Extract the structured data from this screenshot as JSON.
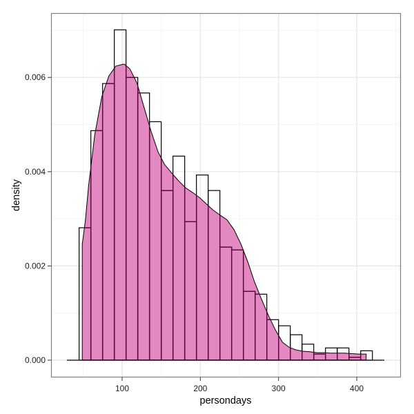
{
  "chart_data": {
    "type": "bar",
    "subtype": "histogram_with_density",
    "title": "",
    "xlabel": "persondays",
    "ylabel": "density",
    "xlim": [
      25,
      450
    ],
    "ylim": [
      -0.00035,
      0.0073
    ],
    "x_ticks": [
      100,
      200,
      300,
      400
    ],
    "x_tick_labels": [
      "100",
      "200",
      "300",
      "400"
    ],
    "y_ticks": [
      0.0,
      0.002,
      0.004,
      0.006
    ],
    "y_tick_labels": [
      "0.000",
      "0.002",
      "0.004",
      "0.006"
    ],
    "grid": true,
    "legend": null,
    "bin_width": 15,
    "bins": [
      {
        "x0": 45,
        "x1": 60,
        "density": 0.00281
      },
      {
        "x0": 60,
        "x1": 75,
        "density": 0.00487
      },
      {
        "x0": 75,
        "x1": 90,
        "density": 0.00587
      },
      {
        "x0": 90,
        "x1": 105,
        "density": 0.00701
      },
      {
        "x0": 105,
        "x1": 120,
        "density": 0.006
      },
      {
        "x0": 120,
        "x1": 135,
        "density": 0.00567
      },
      {
        "x0": 135,
        "x1": 150,
        "density": 0.00506
      },
      {
        "x0": 150,
        "x1": 165,
        "density": 0.0036
      },
      {
        "x0": 165,
        "x1": 180,
        "density": 0.00433
      },
      {
        "x0": 180,
        "x1": 195,
        "density": 0.00294
      },
      {
        "x0": 195,
        "x1": 210,
        "density": 0.00393
      },
      {
        "x0": 210,
        "x1": 225,
        "density": 0.0036
      },
      {
        "x0": 225,
        "x1": 240,
        "density": 0.0024
      },
      {
        "x0": 240,
        "x1": 255,
        "density": 0.00234
      },
      {
        "x0": 255,
        "x1": 270,
        "density": 0.00146
      },
      {
        "x0": 270,
        "x1": 285,
        "density": 0.0014
      },
      {
        "x0": 285,
        "x1": 300,
        "density": 0.00086
      },
      {
        "x0": 300,
        "x1": 315,
        "density": 0.00073
      },
      {
        "x0": 315,
        "x1": 330,
        "density": 0.00054
      },
      {
        "x0": 330,
        "x1": 345,
        "density": 0.00034
      },
      {
        "x0": 345,
        "x1": 360,
        "density": 0.00013
      },
      {
        "x0": 360,
        "x1": 375,
        "density": 0.00026
      },
      {
        "x0": 375,
        "x1": 390,
        "density": 0.00026
      },
      {
        "x0": 390,
        "x1": 405,
        "density": 6e-05
      },
      {
        "x0": 405,
        "x1": 420,
        "density": 0.0002
      }
    ],
    "density_curve": {
      "x": [
        49,
        53,
        57,
        65,
        74,
        83,
        92,
        101,
        103,
        110,
        119,
        128,
        137,
        146,
        154,
        163,
        172,
        181,
        190,
        199,
        208,
        216,
        225,
        234,
        243,
        252,
        261,
        269,
        278,
        287,
        296,
        305,
        314,
        322,
        331,
        340,
        349,
        358,
        366,
        375,
        384,
        393,
        402,
        412
      ],
      "y": [
        0.00246,
        0.00296,
        0.00369,
        0.00478,
        0.00559,
        0.00603,
        0.00624,
        0.00628,
        0.00628,
        0.00618,
        0.00588,
        0.00537,
        0.00486,
        0.00442,
        0.00416,
        0.00398,
        0.00381,
        0.00366,
        0.00356,
        0.00345,
        0.00331,
        0.00319,
        0.00308,
        0.00298,
        0.00277,
        0.00246,
        0.00207,
        0.00167,
        0.0013,
        0.00095,
        0.00064,
        0.00038,
        0.00027,
        0.00022,
        0.00019,
        0.00018,
        0.00016,
        0.00016,
        0.00015,
        0.00015,
        0.00015,
        0.00014,
        0.00013,
        0.00013
      ]
    },
    "colors": {
      "density_fill": "#e388c0",
      "density_outline": "#000000",
      "bin_divider": "#5a0a3c",
      "hist_outline": "#000000",
      "panel_border": "#7f7f7f",
      "grid_major": "#e5e5e5",
      "grid_minor": "#f5f5f5"
    }
  }
}
